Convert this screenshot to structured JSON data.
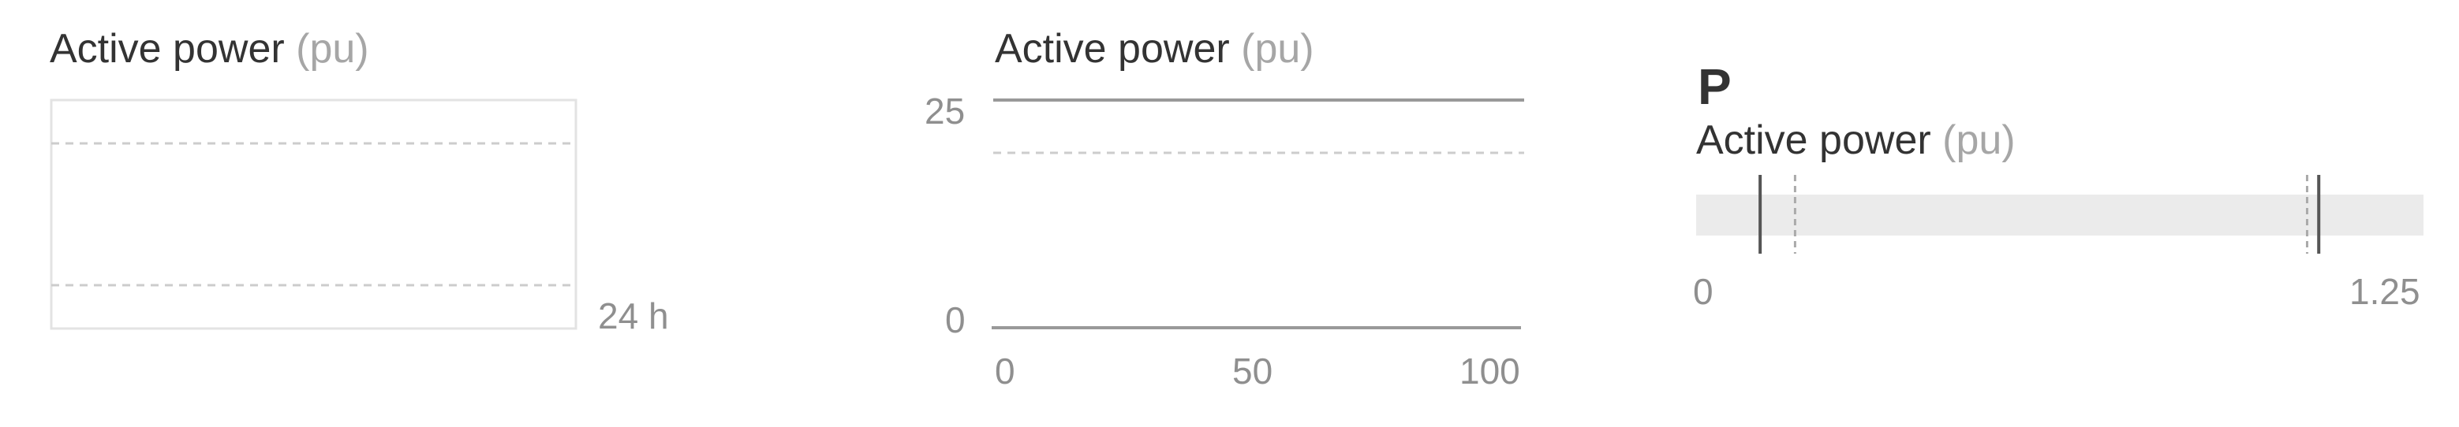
{
  "colors": {
    "text": "#333333",
    "unit": "#a6a6a6",
    "tick": "#8f8f8f",
    "frame": "#e3e3e3",
    "dashed": "#cccccc",
    "axis": "#999999",
    "bar_track": "#ebebeb",
    "marker": "#555555"
  },
  "chart_data": [
    {
      "type": "line",
      "title": "Active power",
      "unit": "(pu)",
      "x_end_label": "24 h",
      "series": [],
      "grid": false
    },
    {
      "type": "line",
      "title": "Active power",
      "unit": "(pu)",
      "xlim": [
        0,
        100
      ],
      "ylim": [
        0,
        25
      ],
      "x_ticks": [
        "0",
        "50",
        "100"
      ],
      "y_ticks": [
        "25",
        "0"
      ],
      "reference_lines": [
        {
          "style": "solid",
          "y": 25
        },
        {
          "style": "dashed",
          "y": 20
        },
        {
          "style": "solid",
          "y": 0
        }
      ],
      "series": []
    },
    {
      "type": "bar",
      "symbol": "P",
      "title": "Active power",
      "unit": "(pu)",
      "xlim": [
        0,
        1.25
      ],
      "x_ticks": [
        "0",
        "1.25"
      ],
      "markers": [
        {
          "style": "solid",
          "value": 0.11
        },
        {
          "style": "dashed",
          "value": 0.17
        },
        {
          "style": "dashed",
          "value": 1.05
        },
        {
          "style": "solid",
          "value": 1.07
        }
      ]
    }
  ]
}
